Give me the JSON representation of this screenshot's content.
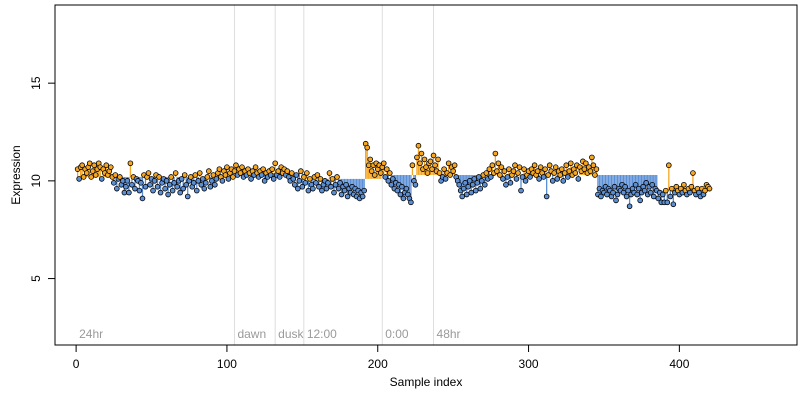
{
  "chart_data": {
    "type": "scatter",
    "title": "",
    "xlabel": "Sample index",
    "ylabel": "Expression",
    "xlim": [
      -14,
      478
    ],
    "ylim": [
      1.6,
      19.0
    ],
    "x_ticks": [
      0,
      100,
      200,
      300,
      400
    ],
    "y_ticks": [
      5,
      10,
      15
    ],
    "grid": false,
    "baseline_lines": true,
    "colors": {
      "above": "#f5a623",
      "below": "#5b8fd6",
      "point_stroke": "#000000",
      "region_line": "#dddddd",
      "region_text": "#9a9a9a"
    },
    "regions": [
      {
        "label": "24hr",
        "start": 0
      },
      {
        "label": "dawn",
        "start": 105
      },
      {
        "label": "dusk",
        "start": 132
      },
      {
        "label": "12:00",
        "start": 151
      },
      {
        "label": "0:00",
        "start": 203
      },
      {
        "label": "48hr",
        "start": 237
      }
    ],
    "segments": [
      {
        "start": 1,
        "end": 104,
        "baseline": 10.2
      },
      {
        "start": 105,
        "end": 131,
        "baseline": 10.4
      },
      {
        "start": 132,
        "end": 150,
        "baseline": 10.4
      },
      {
        "start": 151,
        "end": 202,
        "baseline": 10.1
      },
      {
        "start": 203,
        "end": 236,
        "baseline": 10.3
      },
      {
        "start": 237,
        "end": 385,
        "baseline": 10.3
      },
      {
        "start": 386,
        "end": 460,
        "baseline": 9.5
      }
    ],
    "series": [
      {
        "values": [
          10.6,
          10.1,
          10.7,
          10.8,
          10.2,
          10.6,
          10.4,
          10.7,
          10.9,
          10.2,
          10.5,
          10.8,
          10.3,
          10.6,
          10.9,
          10.7,
          10.1,
          10.6,
          10.4,
          10.8,
          10.3,
          10.5,
          10.7,
          10.2,
          9.9,
          10.3,
          9.6,
          10.1,
          10.2,
          9.8,
          10.0,
          9.4,
          9.7,
          10.0,
          9.4,
          10.9,
          9.8,
          10.2,
          9.6,
          10.1,
          10.0,
          9.5,
          9.9,
          9.1,
          10.3,
          9.7,
          10.2,
          10.4,
          9.8,
          10.1,
          9.5,
          10.0,
          10.3,
          9.7,
          10.2,
          9.4,
          9.9,
          10.1,
          9.6,
          10.0,
          9.3,
          9.8,
          10.2,
          9.5,
          9.9,
          10.4,
          9.7,
          10.0,
          9.4,
          10.1,
          9.6,
          10.3,
          9.8,
          9.2,
          10.0,
          10.2,
          9.7,
          9.9,
          10.3,
          9.5,
          10.0,
          10.4,
          9.8,
          10.1,
          9.6,
          9.9,
          10.2,
          10.5,
          9.7,
          10.0,
          10.3,
          9.8,
          10.1,
          10.4,
          10.6,
          10.2,
          10.0,
          10.5,
          10.3,
          10.7,
          10.1,
          10.4,
          10.6,
          10.2,
          10.5,
          10.8,
          10.3,
          10.6,
          10.4,
          10.7,
          10.2,
          10.5,
          10.3,
          10.6,
          10.4,
          10.1,
          10.5,
          10.3,
          10.7,
          10.4,
          10.2,
          10.5,
          10.3,
          10.6,
          10.0,
          10.4,
          10.2,
          10.5,
          10.3,
          10.6,
          10.1,
          10.9,
          10.3,
          10.5,
          10.2,
          10.7,
          10.4,
          10.6,
          10.3,
          10.5,
          10.2,
          10.0,
          10.4,
          10.1,
          9.8,
          10.3,
          9.6,
          10.0,
          10.5,
          9.7,
          10.2,
          9.9,
          10.4,
          9.5,
          10.1,
          9.8,
          9.6,
          10.2,
          9.9,
          10.3,
          9.7,
          10.1,
          9.5,
          9.8,
          10.0,
          9.6,
          9.9,
          10.4,
          9.7,
          10.1,
          9.4,
          9.8,
          10.2,
          9.6,
          9.9,
          9.3,
          9.7,
          9.5,
          9.8,
          9.2,
          9.6,
          9.4,
          9.7,
          9.3,
          9.6,
          9.2,
          9.5,
          9.1,
          9.4,
          9.2,
          9.5,
          11.9,
          11.7,
          10.8,
          11.1,
          10.5,
          10.8,
          10.3,
          10.9,
          10.6,
          10.8,
          10.4,
          10.7,
          10.9,
          10.2,
          10.6,
          10.0,
          10.4,
          9.8,
          10.1,
          9.6,
          9.9,
          9.5,
          9.8,
          9.3,
          9.7,
          9.1,
          9.4,
          9.6,
          9.3,
          9.1,
          8.9,
          10.8,
          10.0,
          9.8,
          11.2,
          11.8,
          10.9,
          11.4,
          10.6,
          11.1,
          10.7,
          10.4,
          10.9,
          11.0,
          10.6,
          11.3,
          10.8,
          10.5,
          11.1,
          10.4,
          10.0,
          10.2,
          10.6,
          10.1,
          10.4,
          10.9,
          10.3,
          10.7,
          10.5,
          10.8,
          10.2,
          10.0,
          9.8,
          9.5,
          9.2,
          9.6,
          9.9,
          9.3,
          9.7,
          10.0,
          9.4,
          9.8,
          10.1,
          9.5,
          9.9,
          10.2,
          9.6,
          10.0,
          10.3,
          9.8,
          10.4,
          10.1,
          10.6,
          10.2,
          10.8,
          10.4,
          11.4,
          10.5,
          10.9,
          10.3,
          10.7,
          10.1,
          10.5,
          9.8,
          10.2,
          10.6,
          9.9,
          10.3,
          10.5,
          10.8,
          10.1,
          10.4,
          10.7,
          9.5,
          10.2,
          10.6,
          10.0,
          10.3,
          10.5,
          10.2,
          10.6,
          10.4,
          10.8,
          10.3,
          10.5,
          10.1,
          10.7,
          10.4,
          10.2,
          10.6,
          9.2,
          10.3,
          10.8,
          10.5,
          10.0,
          10.4,
          10.7,
          10.1,
          10.5,
          10.3,
          10.6,
          10.0,
          10.4,
          10.8,
          10.2,
          10.5,
          10.9,
          10.3,
          10.6,
          10.4,
          10.8,
          10.1,
          10.7,
          10.5,
          11.0,
          10.6,
          10.9,
          10.4,
          10.7,
          10.5,
          11.2,
          10.8,
          10.3,
          10.6,
          9.3,
          9.6,
          9.2,
          9.5,
          9.4,
          9.7,
          9.3,
          9.6,
          9.5,
          9.2,
          9.4,
          9.7,
          9.0,
          9.3,
          9.6,
          9.5,
          9.8,
          9.4,
          9.7,
          9.2,
          9.5,
          8.7,
          9.3,
          9.6,
          9.4,
          9.8,
          9.3,
          9.6,
          9.0,
          9.4,
          9.7,
          9.5,
          9.9,
          9.3,
          9.7,
          9.4,
          9.8,
          9.2,
          9.6,
          9.5,
          9.1,
          9.4,
          8.9,
          9.3,
          8.9,
          9.5,
          8.9,
          10.8,
          9.2,
          9.6,
          8.8,
          9.4,
          9.7,
          9.5,
          9.3,
          9.6,
          9.4,
          9.8,
          9.5,
          9.3,
          9.6,
          9.4,
          9.7,
          10.4,
          9.5,
          9.3,
          9.6,
          9.4,
          9.2,
          9.6,
          9.3,
          9.5,
          9.8,
          9.7,
          9.6
        ]
      }
    ]
  }
}
